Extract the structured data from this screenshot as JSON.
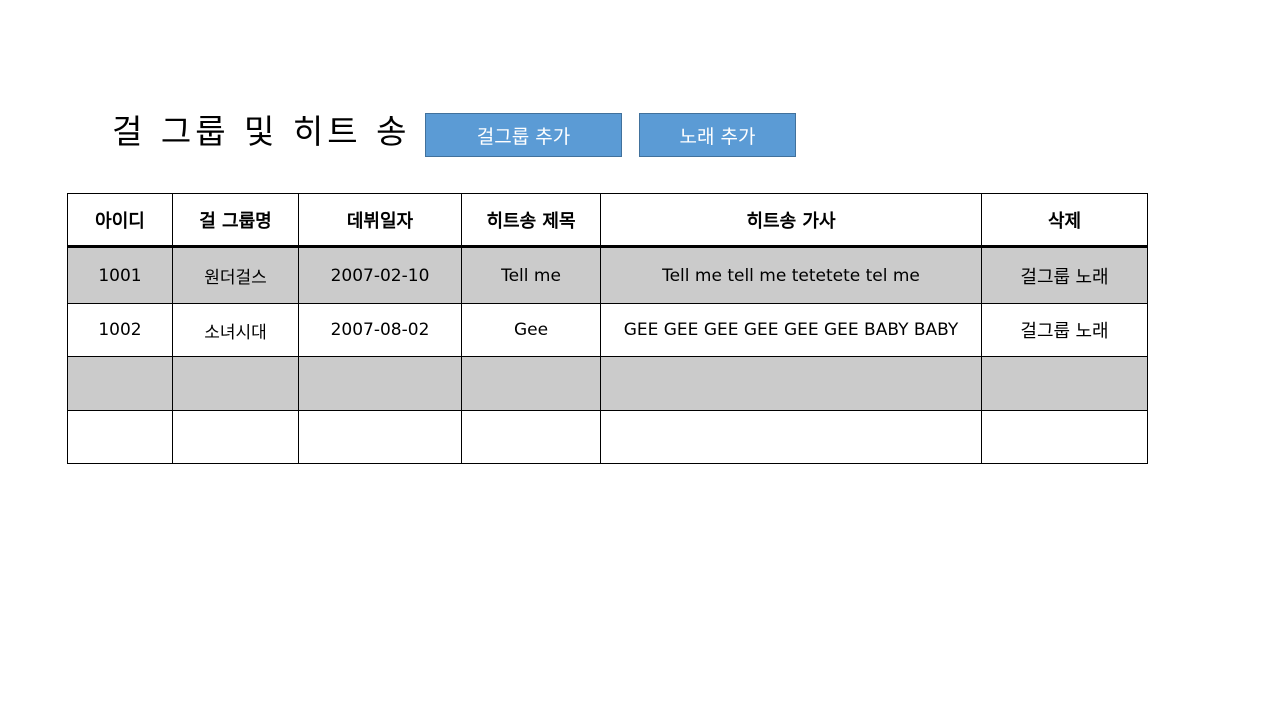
{
  "header": {
    "title": "걸 그룹 및 히트 송",
    "add_group_label": "걸그룹 추가",
    "add_song_label": "노래 추가"
  },
  "colors": {
    "button_bg": "#5b9bd5",
    "button_border": "#41719c",
    "row_shade": "#cbcbcb"
  },
  "table": {
    "columns": [
      "아이디",
      "걸 그룹명",
      "데뷔일자",
      "히트송 제목",
      "히트송 가사",
      "삭제"
    ],
    "rows": [
      {
        "id": "1001",
        "group": "원더걸스",
        "debut": "2007-02-10",
        "song": "Tell me",
        "lyrics": "Tell me tell me tetetete tel me",
        "delete_group": "걸그룹",
        "delete_song": "노래"
      },
      {
        "id": "1002",
        "group": "소녀시대",
        "debut": "2007-08-02",
        "song": "Gee",
        "lyrics": "GEE GEE GEE GEE GEE GEE BABY BABY",
        "delete_group": "걸그룹",
        "delete_song": "노래"
      },
      {
        "id": "",
        "group": "",
        "debut": "",
        "song": "",
        "lyrics": "",
        "delete_group": "",
        "delete_song": ""
      },
      {
        "id": "",
        "group": "",
        "debut": "",
        "song": "",
        "lyrics": "",
        "delete_group": "",
        "delete_song": ""
      }
    ]
  }
}
